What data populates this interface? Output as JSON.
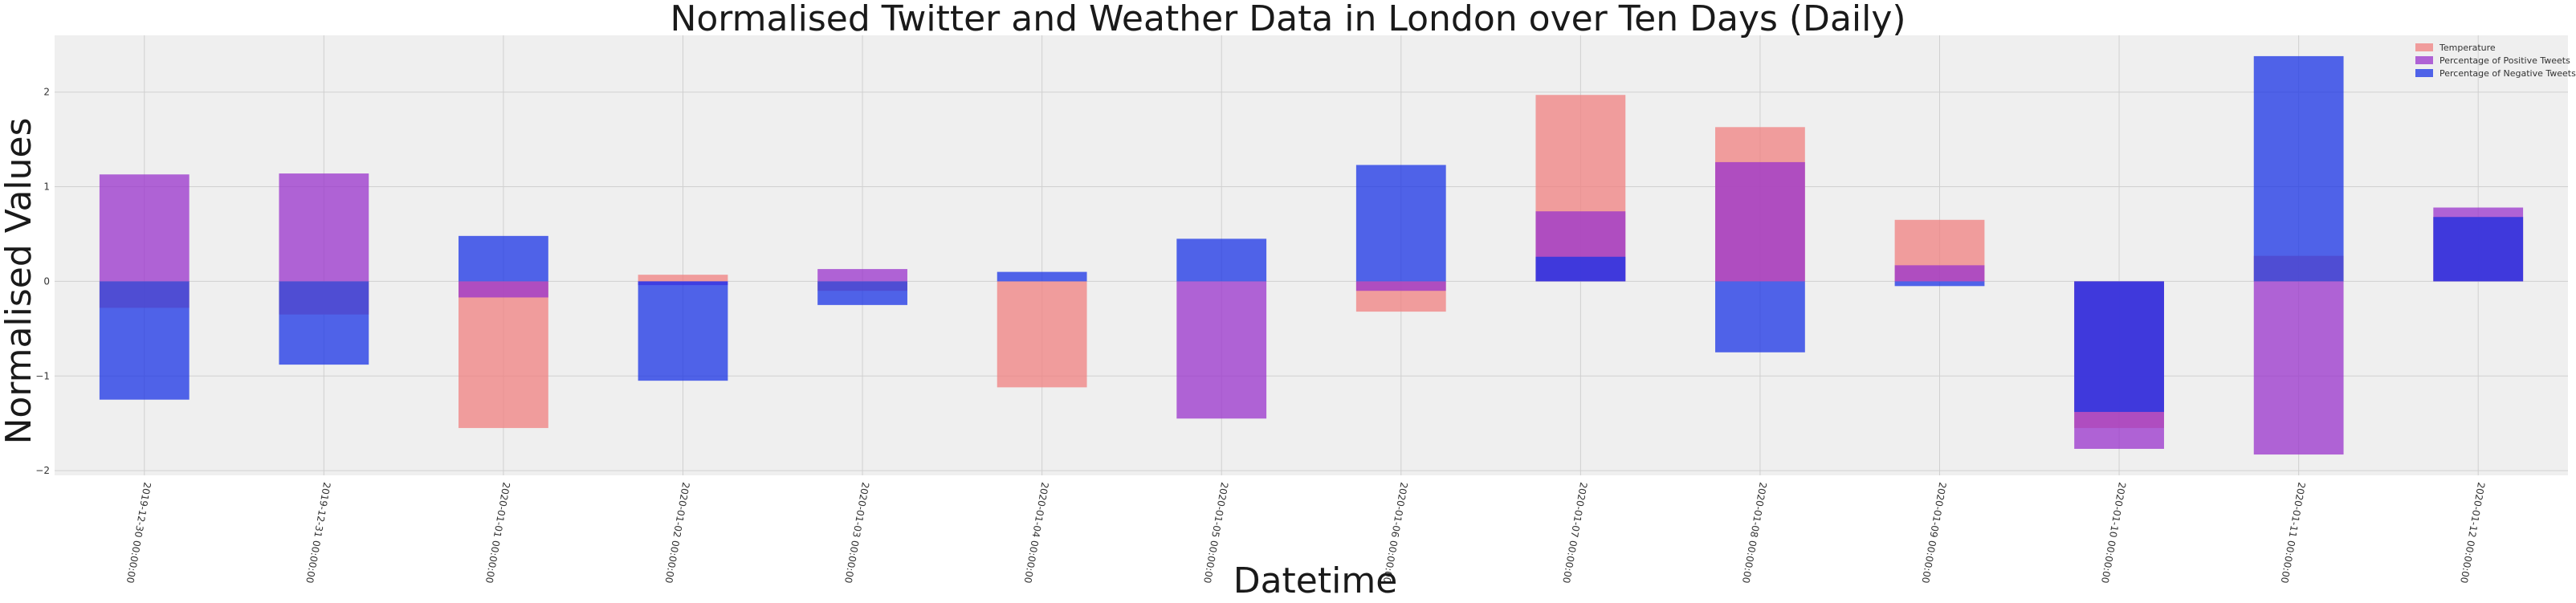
{
  "chart_data": {
    "type": "bar",
    "title": "Normalised Twitter and Weather Data in London over Ten Days (Daily)",
    "xlabel": "Datetime",
    "ylabel": "Normalised Values",
    "ylim": [
      -2.05,
      2.6
    ],
    "yticks": [
      -2,
      -1,
      0,
      1,
      2
    ],
    "grid": true,
    "legend_position": "top-right",
    "categories": [
      "2019-12-30 00:00:00",
      "2019-12-31 00:00:00",
      "2020-01-01 00:00:00",
      "2020-01-02 00:00:00",
      "2020-01-03 00:00:00",
      "2020-01-04 00:00:00",
      "2020-01-05 00:00:00",
      "2020-01-06 00:00:00",
      "2020-01-07 00:00:00",
      "2020-01-08 00:00:00",
      "2020-01-09 00:00:00",
      "2020-01-10 00:00:00",
      "2020-01-11 00:00:00",
      "2020-01-12 00:00:00"
    ],
    "series": [
      {
        "name": "Temperature",
        "color": "#f08080",
        "values": [
          -0.28,
          -0.35,
          -1.55,
          0.07,
          -0.1,
          -1.12,
          0.0,
          -0.32,
          1.97,
          1.63,
          0.65,
          -1.55,
          0.27,
          0.68
        ]
      },
      {
        "name": "Percentage of Positive Tweets",
        "color": "#9933cc",
        "values": [
          1.13,
          1.14,
          -0.17,
          -0.04,
          0.13,
          0.0,
          -1.45,
          -0.1,
          0.74,
          1.26,
          0.17,
          -1.77,
          -1.83,
          0.78
        ]
      },
      {
        "name": "Percentage of Negative Tweets",
        "color": "#1a33e6",
        "values": [
          -1.25,
          -0.88,
          0.48,
          -1.05,
          -0.25,
          0.1,
          0.45,
          1.23,
          0.26,
          -0.75,
          -0.05,
          -1.38,
          2.38,
          0.68
        ]
      }
    ]
  }
}
